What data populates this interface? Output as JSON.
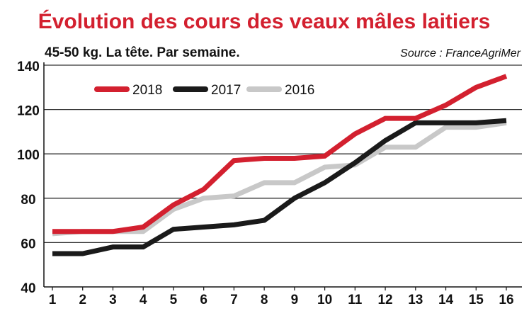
{
  "chart_data": {
    "type": "line",
    "title": "Évolution des cours des veaux mâles laitiers",
    "subtitle": "45-50 kg. La tête. Par semaine.",
    "source": "Source : FranceAgriMer",
    "xlabel": "",
    "ylabel": "",
    "x": [
      1,
      2,
      3,
      4,
      5,
      6,
      7,
      8,
      9,
      10,
      11,
      12,
      13,
      14,
      15,
      16
    ],
    "y_ticks": [
      40,
      60,
      80,
      100,
      120,
      140
    ],
    "ylim": [
      40,
      140
    ],
    "xlim": [
      1,
      16
    ],
    "grid": "horizontal",
    "legend_position": "top-left",
    "series": [
      {
        "name": "2018",
        "color": "#d3202f",
        "values": [
          65,
          65,
          65,
          67,
          77,
          84,
          97,
          98,
          98,
          99,
          109,
          116,
          116,
          122,
          130,
          135
        ]
      },
      {
        "name": "2017",
        "color": "#1a1a1a",
        "values": [
          55,
          55,
          58,
          58,
          66,
          67,
          68,
          70,
          80,
          87,
          96,
          106,
          114,
          114,
          114,
          115
        ]
      },
      {
        "name": "2016",
        "color": "#c8c8c8",
        "values": [
          64,
          65,
          65,
          65,
          75,
          80,
          81,
          87,
          87,
          94,
          95,
          103,
          103,
          112,
          112,
          114
        ]
      }
    ]
  }
}
